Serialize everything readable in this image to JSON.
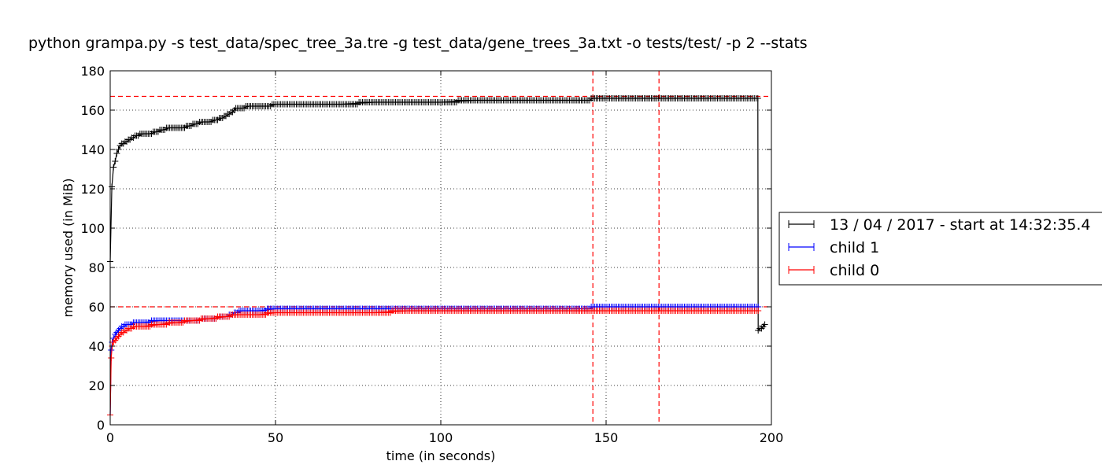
{
  "chart_data": {
    "type": "line",
    "title": "python grampa.py -s test_data/spec_tree_3a.tre -g test_data/gene_trees_3a.txt -o tests/test/ -p 2 --stats",
    "xlabel": "time (in seconds)",
    "ylabel": "memory used (in MiB)",
    "xlim": [
      0,
      200
    ],
    "ylim": [
      0,
      180
    ],
    "xticks": [
      0,
      50,
      100,
      150,
      200
    ],
    "yticks": [
      0,
      20,
      40,
      60,
      80,
      100,
      120,
      140,
      160,
      180
    ],
    "grid": true,
    "marker": "+",
    "legend_position": "right, outside plot area",
    "series": [
      {
        "name": "13 / 04 / 2017 - start at 14:32:35.4",
        "color": "#000000",
        "x": [
          0,
          0.5,
          1,
          1.5,
          2,
          3,
          4,
          5,
          6,
          7,
          8,
          10,
          12,
          14,
          16,
          18,
          20,
          22,
          24,
          26,
          28,
          30,
          32,
          34,
          35,
          36,
          37,
          38,
          40,
          42,
          44,
          46,
          48,
          50,
          60,
          70,
          80,
          90,
          100,
          110,
          120,
          130,
          140,
          145,
          146,
          147,
          150,
          160,
          170,
          180,
          190,
          195.9,
          196,
          196.5,
          197,
          197.5,
          198
        ],
        "y": [
          83,
          121,
          131,
          134,
          138,
          142,
          143,
          144,
          145,
          146,
          147,
          148,
          148,
          149,
          150,
          151,
          151,
          151,
          152,
          153,
          154,
          154,
          155,
          156,
          157,
          158,
          159,
          161,
          161,
          162,
          162,
          162,
          162,
          163,
          163,
          163,
          164,
          164,
          164,
          165,
          165,
          165,
          165,
          165,
          166,
          166,
          166,
          166,
          166,
          166,
          166,
          166,
          48,
          49,
          49,
          50,
          51
        ]
      },
      {
        "name": "child 1",
        "color": "#0000ff",
        "x": [
          0,
          0.3,
          0.6,
          1,
          2,
          3,
          4,
          5,
          6,
          8,
          10,
          15,
          20,
          25,
          30,
          35,
          38,
          40,
          45,
          50,
          60,
          70,
          80,
          90,
          100,
          110,
          120,
          130,
          140,
          145,
          146,
          150,
          160,
          170,
          180,
          190,
          196
        ],
        "y": [
          5,
          38,
          42,
          44,
          47,
          49,
          50,
          51,
          51,
          52,
          52,
          53,
          53,
          53,
          54,
          55,
          57,
          58,
          58,
          59,
          59,
          59,
          59,
          59,
          59,
          59,
          59,
          59,
          59,
          59,
          60,
          60,
          60,
          60,
          60,
          60,
          60
        ]
      },
      {
        "name": "child 0",
        "color": "#ff0000",
        "x": [
          0,
          0.3,
          0.6,
          1,
          2,
          3,
          4,
          5,
          6,
          8,
          10,
          15,
          20,
          25,
          30,
          35,
          38,
          40,
          45,
          50,
          60,
          70,
          80,
          90,
          100,
          110,
          120,
          130,
          140,
          145,
          150,
          160,
          170,
          180,
          190,
          196
        ],
        "y": [
          5,
          34,
          40,
          42,
          44,
          46,
          47,
          48,
          49,
          50,
          50,
          51,
          52,
          53,
          54,
          55,
          56,
          56,
          56,
          57,
          57,
          57,
          57,
          58,
          58,
          58,
          58,
          58,
          58,
          58,
          58,
          58,
          58,
          58,
          58,
          58
        ]
      }
    ],
    "reference_lines": {
      "color": "#ff0000",
      "horizontal": [
        167,
        60
      ],
      "vertical": [
        146,
        166
      ]
    }
  }
}
